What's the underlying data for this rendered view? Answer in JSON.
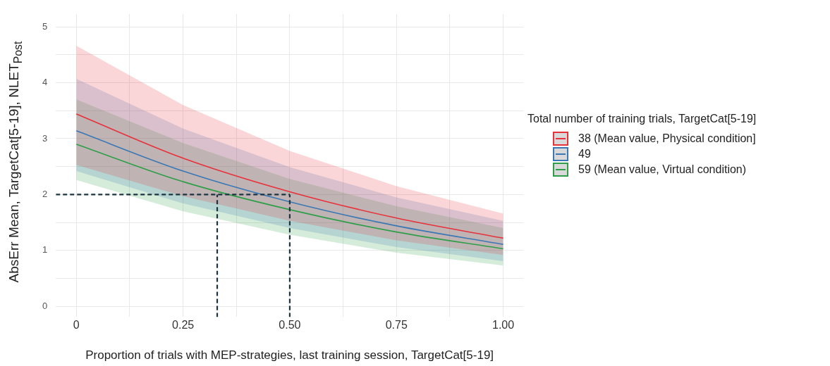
{
  "chart_data": {
    "type": "line",
    "xlabel": "Proportion of trials with MEP-strategies, last training session, TargetCat[5-19]",
    "ylabel": "AbsErr Mean, TargetCat[5-19], NLET$_{Post}$",
    "legend_title": "Total number of training trials, TargetCat[5-19]",
    "legend": "right",
    "grid": true,
    "marker": "none",
    "xlim": [
      -0.048,
      1.047
    ],
    "ylim": [
      -0.19,
      5.23
    ],
    "xticks": [
      0,
      {
        "value": 0.125,
        "label": null
      },
      0.25,
      {
        "value": 0.375,
        "label": null
      },
      {
        "value": 0.5,
        "label": "0.50"
      },
      {
        "value": 0.625,
        "label": null
      },
      0.75,
      {
        "value": 0.875,
        "label": null
      },
      {
        "value": 1,
        "label": "1.00"
      }
    ],
    "yticks": [
      0,
      {
        "value": 0.5,
        "label": null
      },
      1,
      {
        "value": 1.5,
        "label": null
      },
      2,
      {
        "value": 2.5,
        "label": null
      },
      3,
      {
        "value": 3.5,
        "label": null
      },
      4,
      {
        "value": 4.5,
        "label": null
      },
      5
    ],
    "x": [
      0,
      0.25,
      0.5,
      0.75,
      1
    ],
    "series": [
      {
        "name": "38 (Mean value, Physical condition]",
        "color": "#e8313a",
        "values": [
          3.44,
          2.65,
          2.05,
          1.58,
          1.22
        ],
        "lower": [
          2.53,
          1.97,
          1.53,
          1.18,
          0.92
        ],
        "upper": [
          4.66,
          3.6,
          2.78,
          2.15,
          1.66
        ]
      },
      {
        "name": "49",
        "color": "#3a78b5",
        "values": [
          3.14,
          2.42,
          1.87,
          1.44,
          1.11
        ],
        "lower": [
          2.42,
          1.84,
          1.4,
          1.06,
          0.81
        ],
        "upper": [
          4.07,
          3.18,
          2.49,
          1.95,
          1.53
        ]
      },
      {
        "name": "59 (Mean value, Virtual condition)",
        "color": "#2e9e48",
        "values": [
          2.9,
          2.23,
          1.73,
          1.33,
          1.03
        ],
        "lower": [
          2.26,
          1.7,
          1.28,
          0.96,
          0.73
        ],
        "upper": [
          3.7,
          2.92,
          2.28,
          1.79,
          1.4
        ]
      },
      {
        "type": "line",
        "line_style": "dashed",
        "color": "#1c3340",
        "x": [
          -0.048,
          0.5
        ],
        "values": [
          2,
          2
        ]
      },
      {
        "type": "line",
        "line_style": "dashed",
        "color": "#1c3340",
        "x": [
          0.33,
          0.33
        ],
        "values": [
          -0.19,
          2
        ]
      },
      {
        "type": "line",
        "line_style": "dashed",
        "color": "#1c3340",
        "x": [
          0.5,
          0.5
        ],
        "values": [
          -0.19,
          2
        ]
      }
    ]
  }
}
